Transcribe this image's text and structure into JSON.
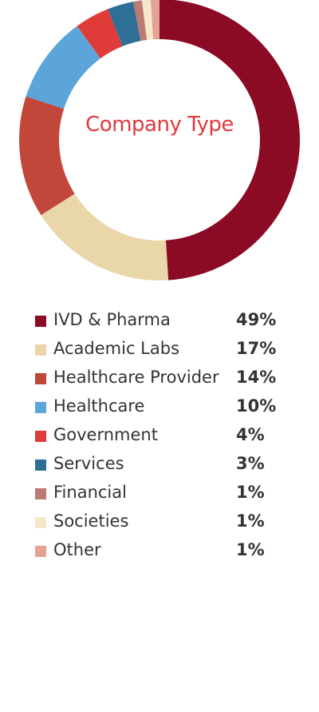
{
  "chart_data": {
    "type": "pie",
    "title": "Company Type",
    "categories": [
      "IVD & Pharma",
      "Academic Labs",
      "Healthcare Provider",
      "Healthcare",
      "Government",
      "Services",
      "Financial",
      "Societies",
      "Other"
    ],
    "values": [
      49,
      17,
      14,
      10,
      4,
      3,
      1,
      1,
      1
    ],
    "value_labels": [
      "49%",
      "17%",
      "14%",
      "10%",
      "4%",
      "3%",
      "1%",
      "1%",
      "1%"
    ],
    "colors": [
      "#8b0a24",
      "#ead7a9",
      "#c2473b",
      "#5ba5da",
      "#df3b38",
      "#2e7095",
      "#bc7a72",
      "#f6e6cb",
      "#e3a292"
    ],
    "legend_position": "bottom",
    "donut": true
  }
}
